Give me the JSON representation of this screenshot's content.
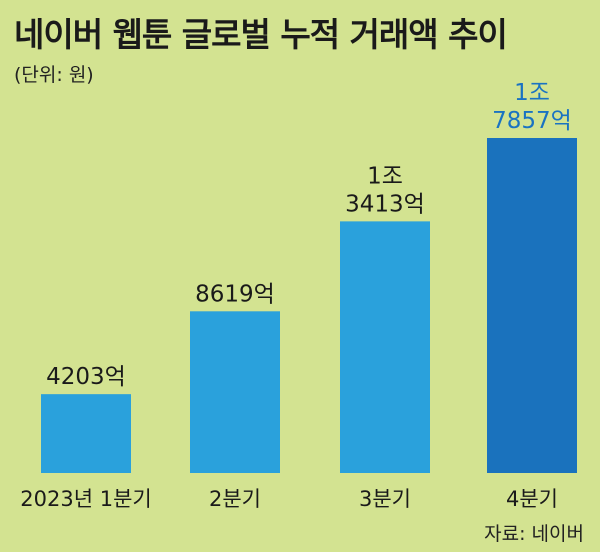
{
  "title": "네이버 웹툰 글로벌 누적 거래액 추이",
  "unit": "(단위: 원)",
  "source": "자료: 네이버",
  "colors": {
    "background": "#d3e391",
    "bar": "#2aa1dc",
    "bar_highlight": "#1a72bd",
    "highlight_label": "#1a73c2"
  },
  "chart_data": {
    "type": "bar",
    "title": "네이버 웹툰 글로벌 누적 거래액 추이",
    "unit": "(단위: 원)",
    "categories": [
      "2023년 1분기",
      "2분기",
      "3분기",
      "4분기"
    ],
    "values": [
      4203,
      8619,
      13413,
      17857
    ],
    "value_unit": "억원",
    "data_labels": [
      [
        "4203억"
      ],
      [
        "8619억"
      ],
      [
        "1조",
        "3413억"
      ],
      [
        "1조",
        "7857억"
      ]
    ],
    "highlight_index": 3,
    "grid": false,
    "legend": "none"
  }
}
